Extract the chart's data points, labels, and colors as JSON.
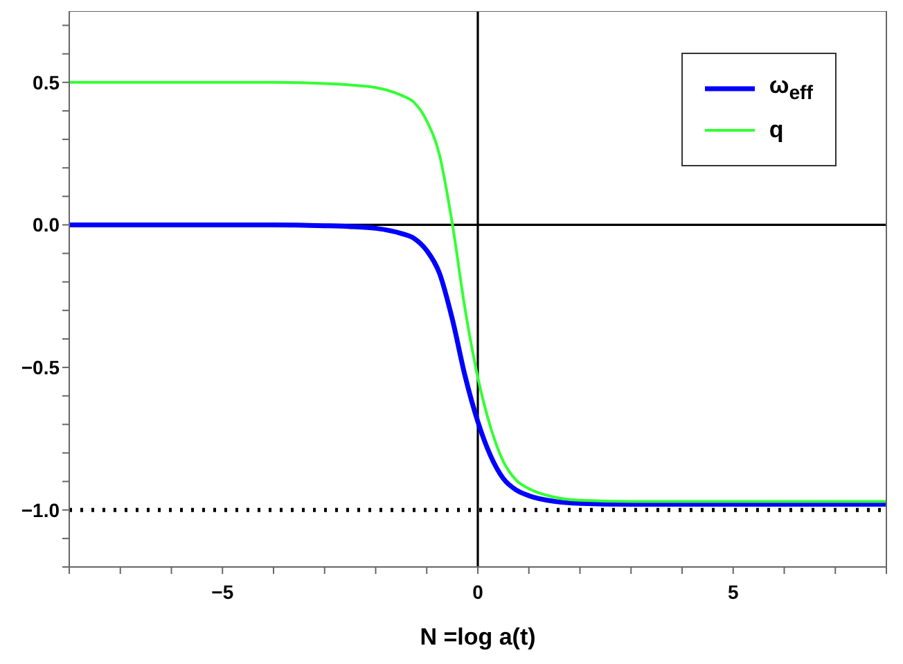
{
  "chart_data": {
    "type": "line",
    "xlabel": "N =log a(t)",
    "x": [
      -8,
      -4,
      -3,
      -2.5,
      -2,
      -1.5,
      -1.25,
      -1,
      -0.75,
      -0.5,
      -0.25,
      0,
      0.25,
      0.5,
      0.75,
      1,
      1.5,
      2,
      3,
      8
    ],
    "series": [
      {
        "name": "ω$_{eff}$",
        "color": "#0000ff",
        "values": [
          0,
          0,
          -0.003,
          -0.006,
          -0.012,
          -0.03,
          -0.047,
          -0.09,
          -0.17,
          -0.33,
          -0.53,
          -0.69,
          -0.81,
          -0.89,
          -0.93,
          -0.95,
          -0.97,
          -0.977,
          -0.98,
          -0.98
        ]
      },
      {
        "name": "q",
        "color": "#33ff33",
        "values": [
          0.5,
          0.5,
          0.496,
          0.491,
          0.482,
          0.455,
          0.43,
          0.365,
          0.245,
          0.005,
          -0.295,
          -0.535,
          -0.71,
          -0.83,
          -0.895,
          -0.925,
          -0.955,
          -0.966,
          -0.97,
          -0.97
        ]
      }
    ],
    "xlim": [
      -8,
      8
    ],
    "ylim": [
      -1.2,
      0.75
    ],
    "xticks": [
      {
        "value": -8,
        "label": null
      },
      {
        "value": -7,
        "label": null
      },
      {
        "value": -6,
        "label": null
      },
      -5,
      {
        "value": -4,
        "label": null
      },
      {
        "value": -3,
        "label": null
      },
      {
        "value": -2,
        "label": null
      },
      {
        "value": -1,
        "label": null
      },
      0,
      {
        "value": 1,
        "label": null
      },
      {
        "value": 2,
        "label": null
      },
      {
        "value": 3,
        "label": null
      },
      {
        "value": 4,
        "label": null
      },
      5,
      {
        "value": 6,
        "label": null
      },
      {
        "value": 7,
        "label": null
      },
      {
        "value": 8,
        "label": null
      }
    ],
    "yticks": [
      {
        "value": -1.2,
        "label": null
      },
      {
        "value": -1.1,
        "label": null
      },
      {
        "value": -1.0,
        "label": "−1.0"
      },
      {
        "value": -0.9,
        "label": null
      },
      {
        "value": -0.8,
        "label": null
      },
      {
        "value": -0.7,
        "label": null
      },
      {
        "value": -0.6,
        "label": null
      },
      -0.5,
      {
        "value": -0.4,
        "label": null
      },
      {
        "value": -0.3,
        "label": null
      },
      {
        "value": -0.2,
        "label": null
      },
      {
        "value": -0.1,
        "label": null
      },
      {
        "value": 0,
        "label": "0.0"
      },
      {
        "value": 0.1,
        "label": null
      },
      {
        "value": 0.2,
        "label": null
      },
      {
        "value": 0.3,
        "label": null
      },
      {
        "value": 0.4,
        "label": null
      },
      0.5,
      {
        "value": 0.6,
        "label": null
      },
      {
        "value": 0.7,
        "label": null
      }
    ],
    "ref_lines": [
      {
        "axis": "y",
        "value": -1,
        "color": "#000000",
        "line_style": "dotted"
      },
      {
        "axis": "y",
        "value": 0,
        "color": "#000000",
        "line_style": "solid"
      },
      {
        "axis": "x",
        "value": 0,
        "color": "#000000",
        "line_style": "solid"
      }
    ],
    "legend": "top right",
    "marker": "none",
    "line_style": "solid"
  }
}
